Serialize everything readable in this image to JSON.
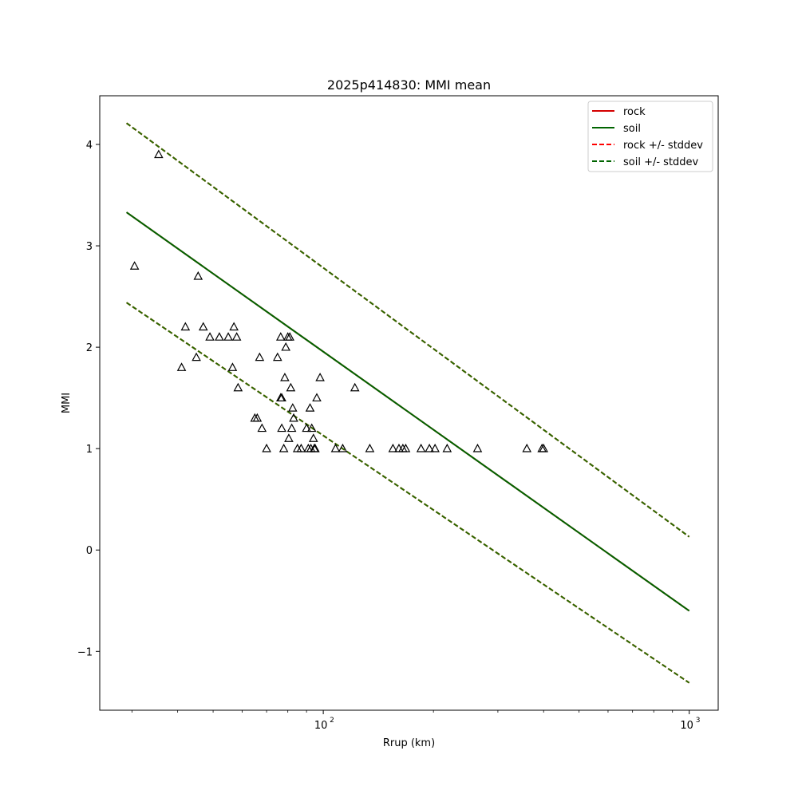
{
  "chart_data": {
    "type": "scatter",
    "title": "2025p414830: MMI mean",
    "xlabel": "Rrup (km)",
    "ylabel": "MMI",
    "xscale": "log",
    "xlim": [
      24.5,
      1200
    ],
    "ylim": [
      -1.58,
      4.48
    ],
    "xticks": [
      {
        "value": 100,
        "label": "10",
        "exp": "2"
      },
      {
        "value": 1000,
        "label": "10",
        "exp": "3"
      }
    ],
    "yticks": [
      -1,
      0,
      1,
      2,
      3,
      4
    ],
    "grid": false,
    "legend_position": "top-right",
    "legend": [
      {
        "label": "rock",
        "color": "#d40000",
        "style": "solid"
      },
      {
        "label": "soil",
        "color": "#006400",
        "style": "solid"
      },
      {
        "label": "rock +/- stddev",
        "color": "#ff0000",
        "style": "dashed"
      },
      {
        "label": "soil +/- stddev",
        "color": "#006400",
        "style": "dashed"
      }
    ],
    "lines": [
      {
        "name": "rock",
        "color": "#d40000",
        "style": "solid",
        "x": [
          29,
          1000
        ],
        "y": [
          3.33,
          -0.6
        ]
      },
      {
        "name": "soil",
        "color": "#006400",
        "style": "solid",
        "x": [
          29,
          1000
        ],
        "y": [
          3.33,
          -0.6
        ]
      },
      {
        "name": "rock +/- stddev",
        "color": "#ff0000",
        "style": "dashed",
        "x": [
          29,
          1000
        ],
        "y": [
          4.21,
          0.13
        ]
      },
      {
        "name": "rock +/- stddev",
        "color": "#ff0000",
        "style": "dashed",
        "x": [
          29,
          1000
        ],
        "y": [
          2.44,
          -1.31
        ]
      },
      {
        "name": "soil +/- stddev",
        "color": "#2a6b00",
        "style": "dashed",
        "x": [
          29,
          1000
        ],
        "y": [
          4.21,
          0.13
        ]
      },
      {
        "name": "soil +/- stddev",
        "color": "#2a6b00",
        "style": "dashed",
        "x": [
          29,
          1000
        ],
        "y": [
          2.44,
          -1.31
        ]
      }
    ],
    "points": {
      "marker": "triangle",
      "color": "#000000",
      "x": [
        30.5,
        35.5,
        41,
        42,
        45,
        45.5,
        47,
        49,
        52,
        55,
        56.5,
        57,
        58,
        58.5,
        65,
        66,
        67,
        68,
        70,
        75,
        76.5,
        76.5,
        77,
        77,
        78,
        78.5,
        79,
        80,
        80.5,
        81,
        81.5,
        82,
        82.5,
        83,
        85,
        87,
        90,
        91,
        92,
        92.5,
        93,
        94,
        94.5,
        95,
        96,
        98,
        108,
        113,
        122,
        134,
        155,
        161,
        165,
        168,
        185,
        195,
        202,
        218,
        264,
        360,
        396,
        400
      ],
      "y": [
        2.8,
        3.9,
        1.8,
        2.2,
        1.9,
        2.7,
        2.2,
        2.1,
        2.1,
        2.1,
        1.8,
        2.2,
        2.1,
        1.6,
        1.3,
        1.3,
        1.9,
        1.2,
        1.0,
        1.9,
        2.1,
        1.5,
        1.5,
        1.2,
        1.0,
        1.7,
        2.0,
        2.1,
        1.1,
        2.1,
        1.6,
        1.2,
        1.4,
        1.3,
        1.0,
        1.0,
        1.2,
        1.0,
        1.4,
        1.0,
        1.2,
        1.1,
        1.0,
        1.0,
        1.5,
        1.7,
        1.0,
        1.0,
        1.6,
        1.0,
        1.0,
        1.0,
        1.0,
        1.0,
        1.0,
        1.0,
        1.0,
        1.0,
        1.0,
        1.0,
        1.0,
        1.0
      ]
    }
  }
}
